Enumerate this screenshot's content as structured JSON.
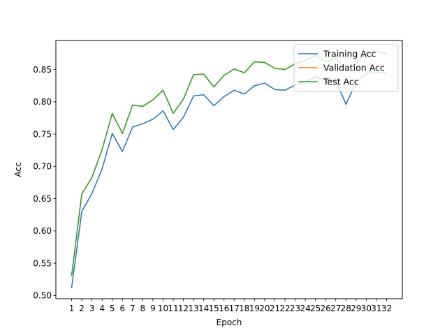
{
  "chart_data": {
    "type": "line",
    "title": "",
    "xlabel": "Epoch",
    "ylabel": "Acc",
    "x": [
      1,
      2,
      3,
      4,
      5,
      6,
      7,
      8,
      9,
      10,
      11,
      12,
      13,
      14,
      15,
      16,
      17,
      18,
      19,
      20,
      21,
      22,
      23,
      24,
      25,
      26,
      27,
      28,
      29,
      30,
      31,
      32
    ],
    "ylim": [
      0.495,
      0.895
    ],
    "yticks": [
      0.5,
      0.55,
      0.6,
      0.65,
      0.7,
      0.75,
      0.8,
      0.85
    ],
    "ytick_labels": [
      "0.50",
      "0.55",
      "0.60",
      "0.65",
      "0.70",
      "0.75",
      "0.80",
      "0.85"
    ],
    "grid": false,
    "legend_position": "top-right",
    "series": [
      {
        "name": "Training Acc",
        "color": "#1f77b4",
        "values": [
          0.512,
          0.63,
          0.658,
          0.696,
          0.751,
          0.723,
          0.761,
          0.766,
          0.773,
          0.786,
          0.757,
          0.776,
          0.809,
          0.811,
          0.794,
          0.808,
          0.818,
          0.812,
          0.825,
          0.829,
          0.819,
          0.818,
          0.826,
          0.831,
          0.839,
          0.833,
          0.834,
          0.796,
          0.83,
          0.844,
          0.846,
          0.844
        ]
      },
      {
        "name": "Validation Acc",
        "color": "#ff7f0e",
        "values": [
          0.531,
          0.657,
          0.683,
          0.726,
          0.782,
          0.751,
          0.795,
          0.793,
          0.803,
          0.818,
          0.782,
          0.804,
          0.842,
          0.843,
          0.823,
          0.841,
          0.851,
          0.845,
          0.862,
          0.861,
          0.852,
          0.85,
          0.859,
          0.864,
          0.872,
          0.862,
          0.867,
          0.852,
          0.859,
          0.876,
          0.878,
          0.874
        ]
      },
      {
        "name": "Test Acc",
        "color": "#2ca02c",
        "values": [
          0.531,
          0.657,
          0.683,
          0.726,
          0.782,
          0.751,
          0.795,
          0.793,
          0.803,
          0.818,
          0.782,
          0.804,
          0.842,
          0.843,
          0.823,
          0.841,
          0.851,
          0.845,
          0.862,
          0.861,
          0.852,
          0.85,
          0.859,
          0.864,
          0.872,
          0.862,
          0.867,
          0.852,
          0.859,
          0.876,
          0.878,
          0.874
        ]
      }
    ]
  }
}
